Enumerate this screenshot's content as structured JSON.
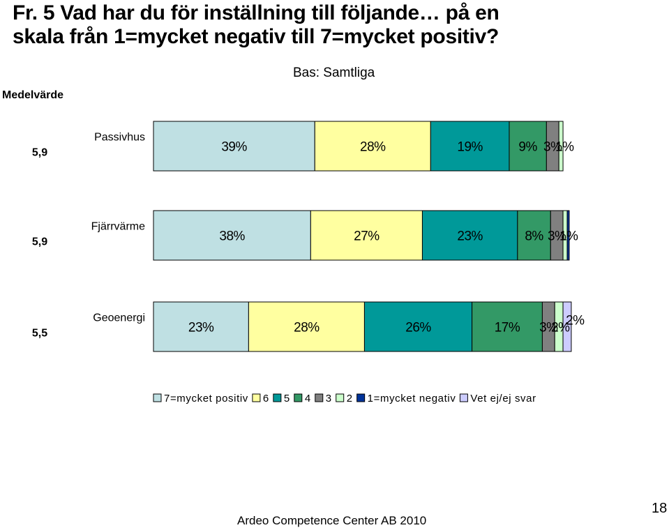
{
  "title_lines": [
    "Fr. 5 Vad har du för inställning till följande… på en",
    "skala från 1=mycket negativ till 7=mycket positiv?"
  ],
  "subtitle": "Bas: Samtliga",
  "mean_header": "Medelvärde",
  "footer": "Ardeo Competence Center AB 2010",
  "page_number": "18",
  "colors": [
    "#bfe0e3",
    "#ffffa0",
    "#009999",
    "#339966",
    "#808080",
    "#ccffcc",
    "#003399",
    "#ccccff"
  ],
  "chart_data": {
    "type": "bar",
    "orientation": "horizontal",
    "stacked": true,
    "categories": [
      "Passivhus",
      "Fjärrvärme",
      "Geoenergi"
    ],
    "means": [
      "5,9",
      "5,9",
      "5,5"
    ],
    "series": [
      {
        "name": "7=mycket positiv",
        "values": [
          39,
          38,
          23
        ],
        "labels": [
          "39%",
          "38%",
          "23%"
        ]
      },
      {
        "name": "6",
        "values": [
          28,
          27,
          28
        ],
        "labels": [
          "28%",
          "27%",
          "28%"
        ]
      },
      {
        "name": "5",
        "values": [
          19,
          23,
          26
        ],
        "labels": [
          "19%",
          "23%",
          "26%"
        ]
      },
      {
        "name": "4",
        "values": [
          9,
          8,
          17
        ],
        "labels": [
          "9%",
          "8%",
          "17%"
        ]
      },
      {
        "name": "3",
        "values": [
          3,
          3,
          3
        ],
        "labels": [
          "3%",
          "3%",
          "3%"
        ]
      },
      {
        "name": "2",
        "values": [
          1,
          1,
          2
        ],
        "labels": [
          "1%",
          "1%",
          "2%"
        ]
      },
      {
        "name": "1=mycket negativ",
        "values": [
          0,
          0.5,
          0
        ],
        "labels": [
          "",
          "",
          ""
        ]
      },
      {
        "name": "Vet ej/ej svar",
        "values": [
          0,
          0,
          2
        ],
        "labels": [
          "",
          "",
          "2%"
        ]
      }
    ],
    "xlim": [
      0,
      100
    ],
    "legend_position": "bottom"
  }
}
